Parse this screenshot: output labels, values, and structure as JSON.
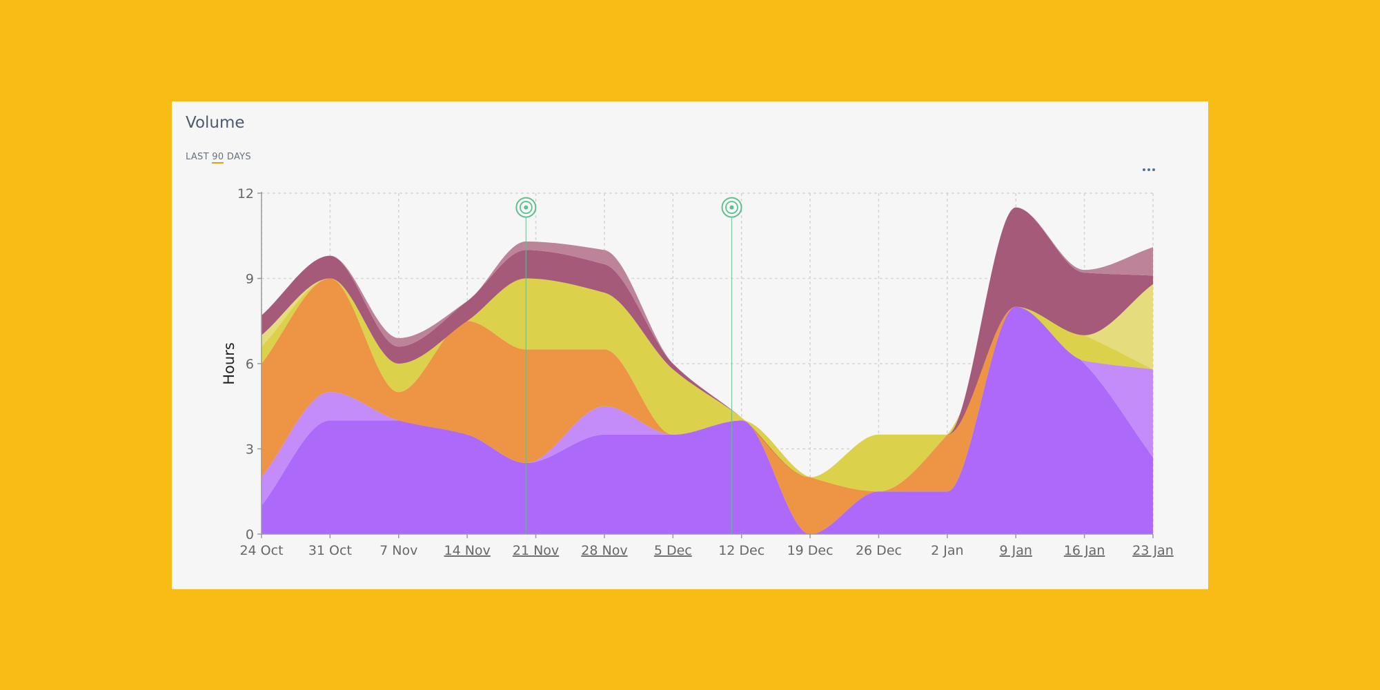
{
  "card": {
    "title": "Volume",
    "subtitle_prefix": "LAST",
    "subtitle_number": "90",
    "subtitle_suffix": "DAYS"
  },
  "more_button": {
    "icon": "more-horizontal-icon"
  },
  "chart_data": {
    "type": "area",
    "stacked": true,
    "smooth": true,
    "ylabel": "Hours",
    "xlabel": "",
    "ylim": [
      0,
      12
    ],
    "yticks": [
      0,
      3,
      6,
      9,
      12
    ],
    "grid": true,
    "x": [
      0,
      7,
      14,
      21,
      28,
      35,
      42,
      49,
      56,
      63,
      70,
      77,
      84,
      91
    ],
    "xtick_labels": [
      "24 Oct",
      "31 Oct",
      "7 Nov",
      "14 Nov",
      "21 Nov",
      "28 Nov",
      "5 Dec",
      "12 Dec",
      "19 Dec",
      "26 Dec",
      "2 Jan",
      "9 Jan",
      "16 Jan",
      "23 Jan"
    ],
    "xtick_underlined": [
      false,
      false,
      false,
      true,
      true,
      true,
      true,
      false,
      false,
      false,
      false,
      true,
      true,
      true
    ],
    "series": [
      {
        "color": "#AC69FA",
        "x": [
          0,
          7,
          14,
          21,
          27,
          35,
          42,
          49,
          56,
          63,
          70,
          77,
          84,
          91
        ],
        "values": [
          1,
          4,
          4,
          3.5,
          2.5,
          3.5,
          3.5,
          4,
          0,
          1.5,
          1.5,
          8,
          6,
          2.7
        ]
      },
      {
        "color": "#C38CF9",
        "x": [
          0,
          7,
          14,
          21,
          27,
          35,
          42,
          49,
          56,
          63,
          70,
          77,
          84,
          91
        ],
        "values": [
          1,
          1,
          0,
          0,
          0,
          1,
          0,
          0,
          0,
          0,
          0,
          0,
          0.1,
          3.1
        ]
      },
      {
        "color": "#ED9545",
        "x": [
          0,
          7,
          14,
          21,
          27,
          35,
          42,
          49,
          56,
          63,
          70,
          77,
          84,
          91
        ],
        "values": [
          4,
          4,
          1,
          4,
          4,
          2,
          0,
          0,
          2,
          0,
          2,
          0,
          0,
          0
        ]
      },
      {
        "color": "#DBD14A",
        "x": [
          0,
          7,
          14,
          21,
          27,
          35,
          42,
          49,
          56,
          63,
          70,
          77,
          84,
          91
        ],
        "values": [
          0.6,
          0,
          1,
          0,
          2.5,
          2,
          2.3,
          0.1,
          0,
          2,
          0,
          0,
          0.9,
          0
        ]
      },
      {
        "color": "#E4DC7D",
        "x": [
          0,
          7,
          14,
          21,
          27,
          35,
          42,
          49,
          56,
          63,
          70,
          77,
          84,
          91
        ],
        "values": [
          0.4,
          0,
          0,
          0,
          0,
          0,
          0,
          0,
          0,
          0,
          0,
          0,
          0,
          3
        ]
      },
      {
        "color": "#A65A7A",
        "x": [
          0,
          7,
          14,
          21,
          27,
          35,
          42,
          49,
          56,
          63,
          70,
          77,
          84,
          91
        ],
        "values": [
          0.7,
          0.8,
          0.6,
          0.7,
          1,
          1,
          0.2,
          0,
          0,
          0,
          0,
          3.5,
          2.2,
          0.3
        ]
      },
      {
        "color": "#BC8399",
        "x": [
          0,
          7,
          14,
          21,
          27,
          35,
          42,
          49,
          56,
          63,
          70,
          77,
          84,
          91
        ],
        "values": [
          0,
          0,
          0.3,
          0,
          0.3,
          0.5,
          0,
          0,
          0,
          0,
          0,
          0,
          0.1,
          1
        ]
      }
    ],
    "annotations": [
      {
        "x": 27,
        "icon": "target-marker-icon"
      },
      {
        "x": 48,
        "icon": "target-marker-icon"
      }
    ],
    "annotation_color": "#5FC08F"
  }
}
